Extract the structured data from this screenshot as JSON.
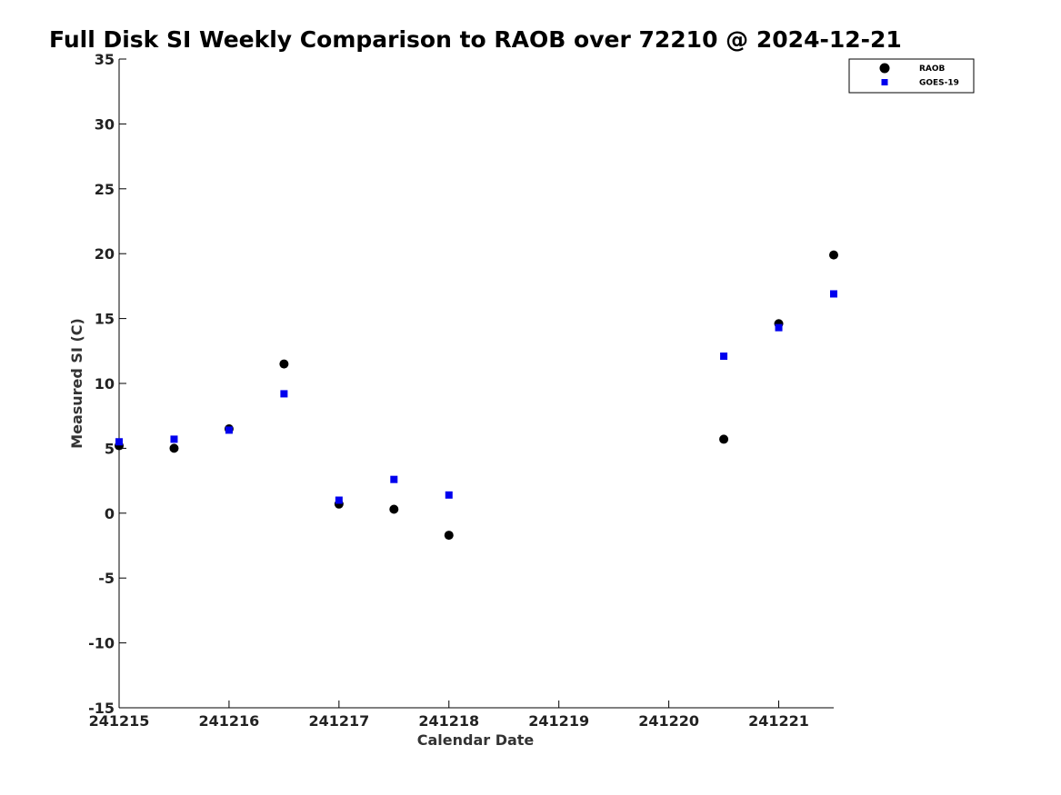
{
  "chart_data": {
    "type": "scatter",
    "title": "Full Disk SI Weekly Comparison to RAOB over 72210 @ 2024-12-21",
    "xlabel": "Calendar Date",
    "ylabel": "Measured SI (C)",
    "xlim": [
      "241215",
      "241221.5"
    ],
    "ylim": [
      -15,
      35
    ],
    "x_ticks": [
      "241215",
      "241216",
      "241217",
      "241218",
      "241219",
      "241220",
      "241221"
    ],
    "y_ticks": [
      35,
      30,
      25,
      20,
      15,
      10,
      5,
      0,
      -5,
      -10,
      -15
    ],
    "grid": false,
    "legend": "top-right",
    "series": [
      {
        "name": "RAOB",
        "marker": "circle",
        "color": "#000000",
        "points": [
          {
            "x": 241215.0,
            "y": 5.2
          },
          {
            "x": 241215.5,
            "y": 5.0
          },
          {
            "x": 241216.0,
            "y": 6.5
          },
          {
            "x": 241216.5,
            "y": 11.5
          },
          {
            "x": 241217.0,
            "y": 0.7
          },
          {
            "x": 241217.5,
            "y": 0.3
          },
          {
            "x": 241218.0,
            "y": -1.7
          },
          {
            "x": 241220.5,
            "y": 5.7
          },
          {
            "x": 241221.0,
            "y": 14.6
          },
          {
            "x": 241221.5,
            "y": 19.9
          }
        ]
      },
      {
        "name": "GOES-19",
        "marker": "square",
        "color": "#0000ee",
        "points": [
          {
            "x": 241215.0,
            "y": 5.5
          },
          {
            "x": 241215.5,
            "y": 5.7
          },
          {
            "x": 241216.0,
            "y": 6.4
          },
          {
            "x": 241216.5,
            "y": 9.2
          },
          {
            "x": 241217.0,
            "y": 1.0
          },
          {
            "x": 241217.5,
            "y": 2.6
          },
          {
            "x": 241218.0,
            "y": 1.4
          },
          {
            "x": 241220.5,
            "y": 12.1
          },
          {
            "x": 241221.0,
            "y": 14.3
          },
          {
            "x": 241221.5,
            "y": 16.9
          }
        ]
      }
    ]
  }
}
